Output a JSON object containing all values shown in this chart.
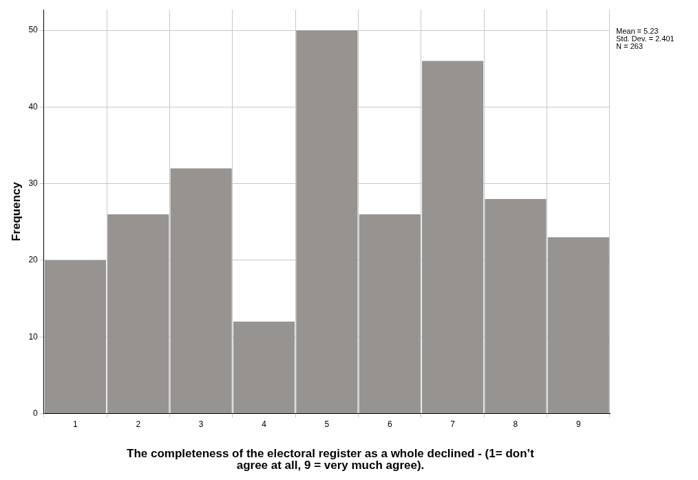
{
  "chart_data": {
    "type": "histogram",
    "xlabel": "The completeness of the electoral register as a whole declined - (1= don’t agree at all, 9 = very much agree).",
    "ylabel": "Frequency",
    "bins": [
      0.5,
      1.5,
      2.5,
      3.5,
      4.5,
      5.5,
      6.5,
      7.5,
      8.5,
      9.5
    ],
    "values": [
      20,
      26,
      32,
      12,
      50,
      26,
      46,
      28,
      23
    ],
    "color": "#969391",
    "xlim": [
      0.5,
      9.5
    ],
    "xticks": [
      1,
      2,
      3,
      4,
      5,
      6,
      7,
      8,
      9
    ],
    "ylim": [
      0,
      52.7
    ],
    "yticks": [
      0,
      10,
      20,
      30,
      40,
      50
    ],
    "grid": true,
    "legend": false,
    "annotations": [
      "Mean = 5.23",
      "Std. Dev. = 2.401",
      "N = 263"
    ]
  }
}
